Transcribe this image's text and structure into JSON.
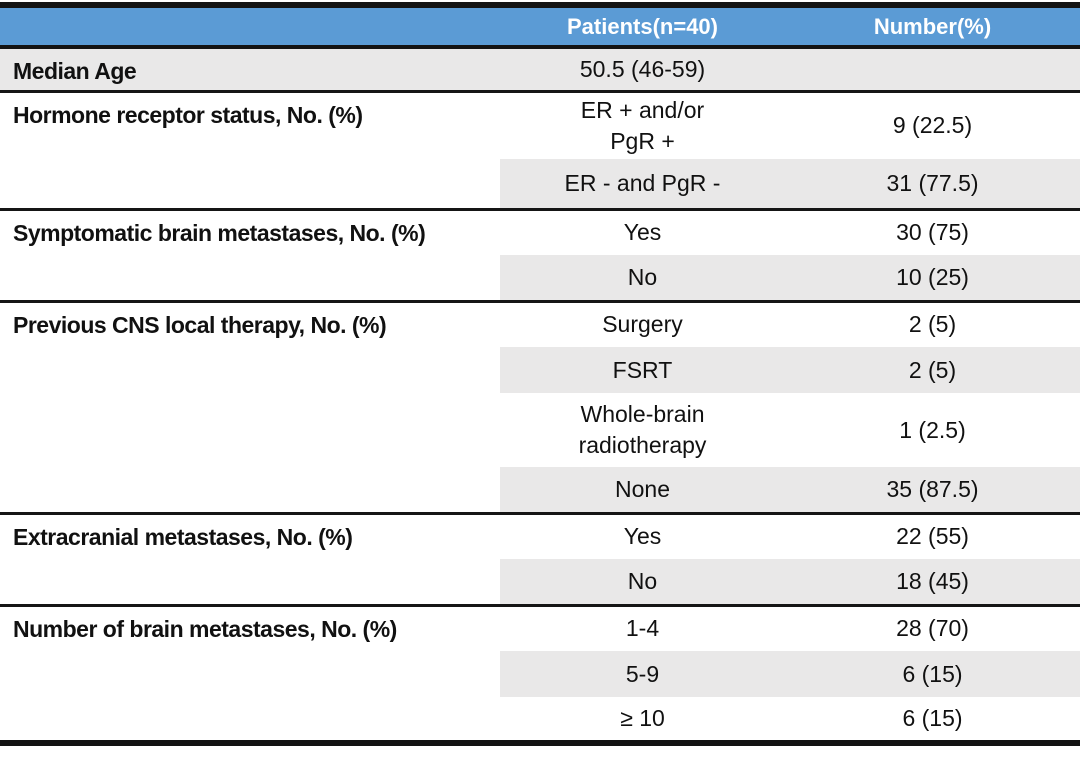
{
  "table": {
    "columns": [
      "Patients(n=40)",
      "Number(%)"
    ],
    "sections": [
      {
        "label": "Median Age",
        "rows": [
          {
            "value": "50.5 (46-59)",
            "number": ""
          }
        ]
      },
      {
        "label": "Hormone receptor status, No. (%)",
        "rows": [
          {
            "value": "ER + and/or\nPgR +",
            "number": "9 (22.5)"
          },
          {
            "value": "ER - and PgR -",
            "number": "31 (77.5)"
          }
        ]
      },
      {
        "label": "Symptomatic brain metastases, No. (%)",
        "rows": [
          {
            "value": "Yes",
            "number": "30 (75)"
          },
          {
            "value": "No",
            "number": "10 (25)"
          }
        ]
      },
      {
        "label": "Previous CNS local therapy, No. (%)",
        "rows": [
          {
            "value": "Surgery",
            "number": "2 (5)"
          },
          {
            "value": "FSRT",
            "number": "2 (5)"
          },
          {
            "value": "Whole-brain\nradiotherapy",
            "number": "1 (2.5)"
          },
          {
            "value": "None",
            "number": "35 (87.5)"
          }
        ]
      },
      {
        "label": "Extracranial metastases, No. (%)",
        "rows": [
          {
            "value": "Yes",
            "number": "22 (55)"
          },
          {
            "value": "No",
            "number": "18 (45)"
          }
        ]
      },
      {
        "label": "Number of brain metastases, No. (%)",
        "rows": [
          {
            "value": "1-4",
            "number": "28 (70)"
          },
          {
            "value": "5-9",
            "number": "6 (15)"
          },
          {
            "value": "≥ 10",
            "number": "6 (15)"
          }
        ]
      }
    ],
    "colors": {
      "header_bg": "#5B9BD5",
      "header_text": "#FFFFFF",
      "shaded_row": "#E9E8E8",
      "border": "#131313"
    }
  }
}
